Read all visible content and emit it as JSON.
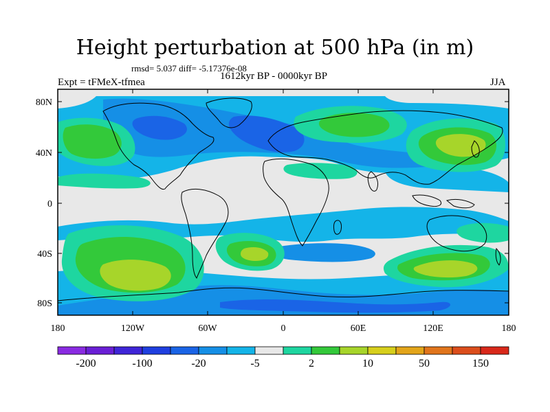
{
  "title": "Height perturbation at 500 hPa (in m)",
  "stats": "rmsd= 5.037 diff= -5.17376e-08",
  "subtitle": "1612kyr BP - 0000kyr BP",
  "experiment": "Expt = tFMeX-tfmea",
  "season": "JJA",
  "axes": {
    "lat_ticks": [
      "80N",
      "40N",
      "0",
      "40S",
      "80S"
    ],
    "lon_ticks": [
      "180",
      "120W",
      "60W",
      "0",
      "60E",
      "120E",
      "180"
    ]
  },
  "colorbar": {
    "colors": [
      "#8a2be2",
      "#6a1fd6",
      "#3f25d8",
      "#1f3fe0",
      "#1a64e6",
      "#158fe6",
      "#14b4e8",
      "#e8e8e8",
      "#1ed6a0",
      "#33c93a",
      "#a7d52a",
      "#d7cf1c",
      "#e3a51a",
      "#e1751c",
      "#dc4e1c",
      "#d9281a"
    ],
    "labels": [
      "-200",
      "-100",
      "-20",
      "-5",
      "2",
      "10",
      "50",
      "150"
    ]
  },
  "field_palette": {
    "background": "#e8e8e8",
    "dark_blue": "#1a64e6",
    "blue": "#158fe6",
    "light_blue": "#14b4e8",
    "teal": "#1ed6a0",
    "green": "#33c93a",
    "yellow_green": "#a7d52a"
  }
}
